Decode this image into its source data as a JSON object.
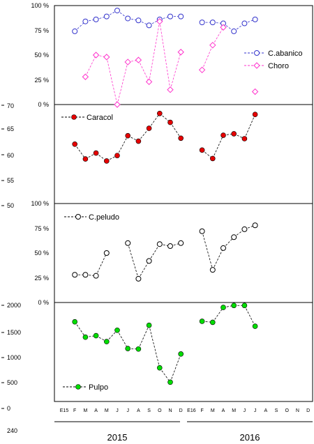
{
  "months": [
    "E15",
    "F",
    "M",
    "A",
    "M",
    "J",
    "J",
    "A",
    "S",
    "O",
    "N",
    "D",
    "E16",
    "F",
    "M",
    "A",
    "M",
    "J",
    "J",
    "A",
    "S",
    "O",
    "N",
    "D"
  ],
  "years": [
    "2015",
    "2016"
  ],
  "chart_data": [
    {
      "type": "line",
      "panel": "top",
      "ylim": [
        0,
        100
      ],
      "yticks": [
        "0 %",
        "25 %",
        "50 %",
        "75 %",
        "100 %"
      ],
      "series": [
        {
          "name": "C.abanico",
          "marker": "circle-open",
          "color": "#3333cc",
          "values": [
            null,
            74,
            84,
            86,
            89,
            95,
            87,
            85,
            80,
            86,
            89,
            89,
            null,
            83,
            83,
            82,
            74,
            82,
            86,
            null,
            null,
            null,
            null,
            null
          ]
        },
        {
          "name": "Choro",
          "marker": "diamond-open",
          "color": "#ff33cc",
          "values": [
            null,
            null,
            28,
            50,
            48,
            0,
            43,
            45,
            23,
            84,
            15,
            53,
            null,
            35,
            60,
            78,
            null,
            null,
            13,
            null,
            null,
            null,
            null,
            null
          ]
        }
      ]
    },
    {
      "type": "line",
      "panel": "caracol",
      "ylim": [
        50,
        70
      ],
      "yticks": [
        "50",
        "55",
        "60",
        "65",
        "70"
      ],
      "series": [
        {
          "name": "Caracol",
          "marker": "circle-filled",
          "color": "#e60000",
          "values": [
            null,
            62,
            59,
            60.2,
            58.6,
            59.7,
            63.7,
            62.6,
            65.2,
            68.2,
            66.4,
            63.2,
            null,
            60.8,
            59.1,
            63.8,
            64.1,
            63.1,
            68.0,
            null,
            null,
            null,
            null,
            null
          ]
        }
      ]
    },
    {
      "type": "line",
      "panel": "peludo",
      "ylim": [
        0,
        100
      ],
      "yticks": [
        "0 %",
        "25 %",
        "50 %",
        "75 %",
        "100 %"
      ],
      "series": [
        {
          "name": "C.peludo",
          "marker": "circle-open",
          "color": "#000000",
          "values": [
            null,
            28,
            28,
            27,
            50,
            null,
            60,
            24,
            42,
            59,
            57,
            60,
            null,
            72,
            33,
            55,
            66,
            74,
            78,
            null,
            null,
            null,
            null,
            null
          ]
        }
      ]
    },
    {
      "type": "line",
      "panel": "pulpo",
      "ylim": [
        0,
        2000
      ],
      "yticks": [
        "0",
        "500",
        "1000",
        "1500",
        "2000"
      ],
      "extra_tick": "240",
      "series": [
        {
          "name": "Pulpo",
          "marker": "circle-filled",
          "color": "#00dd00",
          "values": [
            null,
            1610,
            1300,
            1330,
            1210,
            1440,
            1070,
            1060,
            1540,
            680,
            390,
            960,
            null,
            1620,
            1600,
            1900,
            1940,
            1940,
            1520,
            null,
            null,
            null,
            null,
            null
          ]
        }
      ]
    }
  ]
}
